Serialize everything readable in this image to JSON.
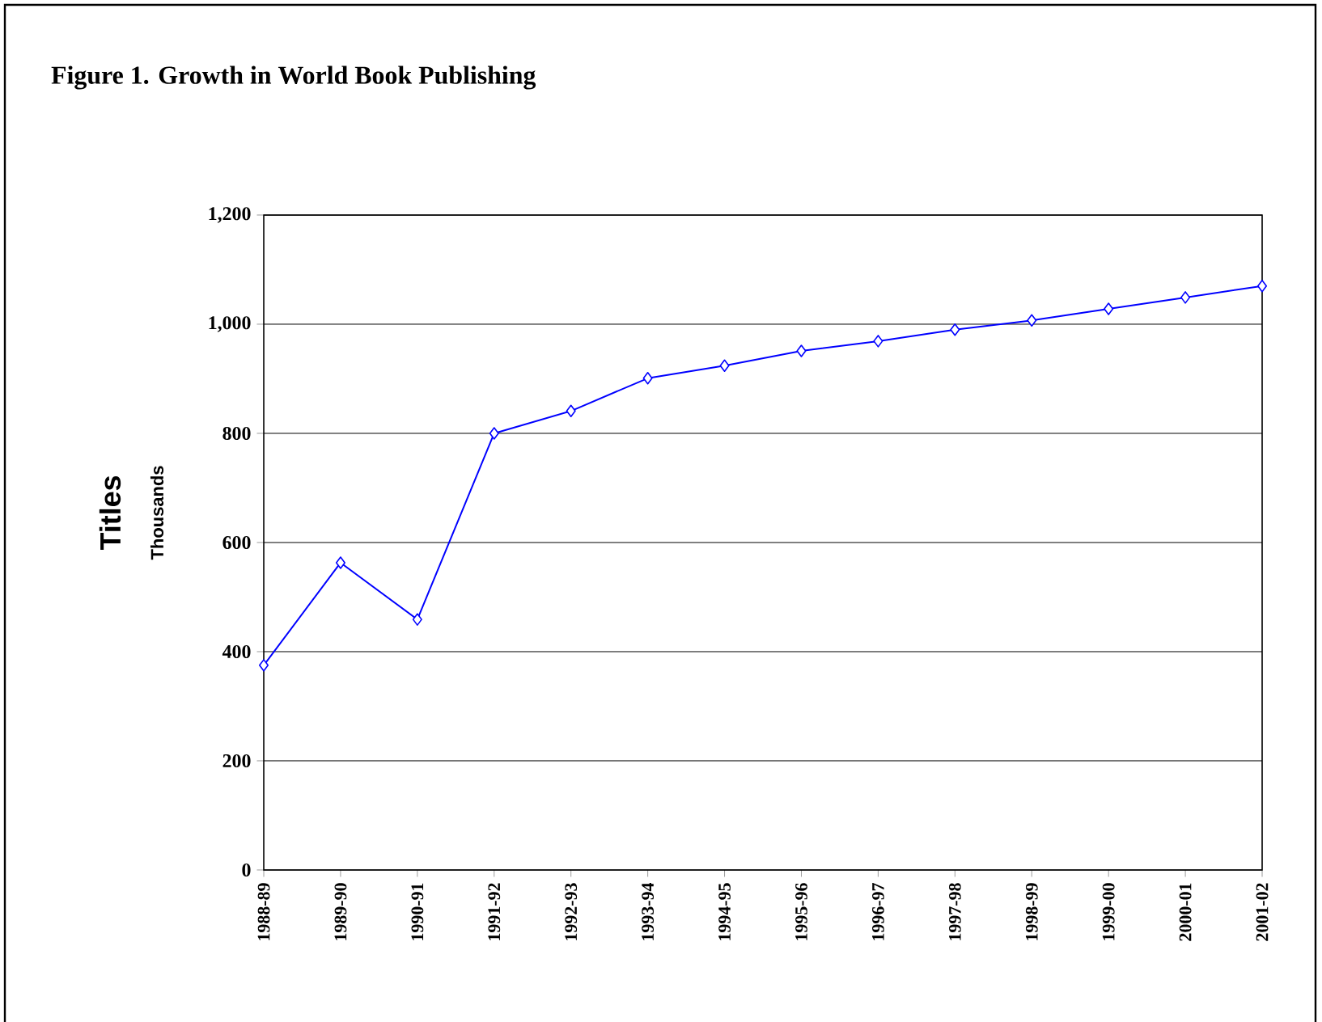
{
  "chart_data": {
    "type": "line",
    "title": "Figure 1.  Growth in World Book Publishing",
    "ylabel": "Titles",
    "annotations": [
      "Thousands"
    ],
    "categories": [
      "1988-89",
      "1989-90",
      "1990-91",
      "1991-92",
      "1992-93",
      "1993-94",
      "1994-95",
      "1995-96",
      "1996-97",
      "1997-98",
      "1998-99",
      "1999-00",
      "2000-01",
      "2001-02"
    ],
    "series": [
      {
        "color": "#0000ff",
        "values": [
          375,
          563,
          459,
          800,
          841,
          901,
          924,
          951,
          969,
          990,
          1007,
          1028,
          1049,
          1070
        ]
      }
    ],
    "ylim": [
      0,
      1200
    ],
    "yticks": [
      {
        "value": 0,
        "label": "0"
      },
      {
        "value": 200,
        "label": "200"
      },
      {
        "value": 400,
        "label": "400"
      },
      {
        "value": 600,
        "label": "600"
      },
      {
        "value": 800,
        "label": "800"
      },
      {
        "value": 1000,
        "label": "1,000"
      },
      {
        "value": 1200,
        "label": "1,200"
      }
    ],
    "grid": "y",
    "marker": "diamond",
    "line_style": "solid"
  }
}
